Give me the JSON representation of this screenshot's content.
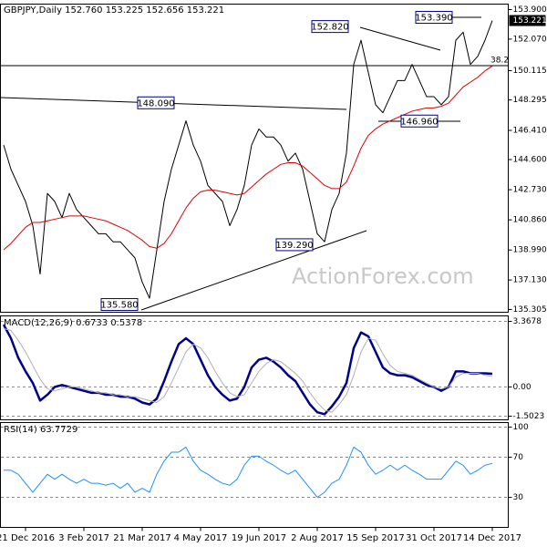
{
  "watermark": "ActionForex.com",
  "chart_data": [
    {
      "type": "line",
      "title": "GBPJPY,Daily  152.760 153.225 152.656 153.221",
      "grid": false,
      "ylim": [
        135.13,
        154.24
      ],
      "yticks": [
        {
          "value": 153.9,
          "label": "153.900"
        },
        {
          "value": 152.07,
          "label": "152.070"
        },
        150.115,
        148.295,
        {
          "value": 146.41,
          "label": "146.410"
        },
        {
          "value": 144.6,
          "label": "144.600"
        },
        {
          "value": 142.73,
          "label": "142.730"
        },
        {
          "value": 140.86,
          "label": "140.860"
        },
        {
          "value": 138.99,
          "label": "138.990"
        },
        {
          "value": 137.13,
          "label": "137.130"
        },
        135.305
      ],
      "last_price": 153.221,
      "annotations": [
        {
          "value": 152.82,
          "label": "152.820"
        },
        {
          "value": 153.39,
          "label": "153.390"
        },
        {
          "value": 148.09,
          "label": "148.090"
        },
        {
          "value": 146.96,
          "label": "146.960"
        },
        {
          "value": 139.29,
          "label": "139.290"
        },
        {
          "value": 135.58,
          "label": "135.580"
        }
      ],
      "fib_label": "38.2",
      "series": [
        {
          "color": "#000000",
          "values": [
            145.5,
            144.0,
            143.0,
            142.0,
            140.5,
            137.5,
            142.5,
            142.0,
            141.0,
            142.5,
            141.5,
            141.0,
            140.5,
            140.0,
            140.0,
            139.5,
            139.5,
            139.0,
            138.5,
            137.0,
            136.0,
            139.0,
            142.0,
            144.0,
            145.5,
            147.0,
            145.5,
            144.5,
            143.0,
            142.5,
            142.0,
            140.5,
            141.5,
            143.0,
            145.5,
            146.5,
            146.0,
            146.0,
            145.5,
            144.5,
            145.0,
            144.0,
            142.0,
            140.0,
            139.5,
            141.5,
            142.5,
            145.0,
            150.5,
            152.0,
            150.0,
            148.0,
            147.5,
            148.5,
            149.5,
            149.5,
            150.5,
            149.5,
            148.5,
            148.5,
            148.0,
            148.5,
            152.0,
            152.5,
            150.5,
            151.0,
            152.0,
            153.221
          ]
        },
        {
          "color": "#e00000",
          "values": [
            139.0,
            139.4,
            139.9,
            140.4,
            140.7,
            140.7,
            140.8,
            140.9,
            141.0,
            141.1,
            141.1,
            141.1,
            141.0,
            140.9,
            140.8,
            140.6,
            140.4,
            140.2,
            139.9,
            139.6,
            139.2,
            139.1,
            139.4,
            140.0,
            140.8,
            141.6,
            142.2,
            142.6,
            142.7,
            142.7,
            142.6,
            142.5,
            142.4,
            142.5,
            142.9,
            143.3,
            143.7,
            144.0,
            144.3,
            144.4,
            144.4,
            144.2,
            143.8,
            143.4,
            143.0,
            142.8,
            142.8,
            143.2,
            144.2,
            145.3,
            146.1,
            146.5,
            146.8,
            147.0,
            147.2,
            147.4,
            147.6,
            147.7,
            147.8,
            147.8,
            147.9,
            148.1,
            148.6,
            149.1,
            149.4,
            149.7,
            150.1,
            150.4
          ]
        }
      ]
    },
    {
      "type": "line",
      "title": "MACD(12,26,9) 0.6733 0.5378",
      "grid": true,
      "ylim": [
        -1.69,
        3.65
      ],
      "yticks": [
        3.3678,
        {
          "value": 0,
          "label": "0.00"
        },
        -1.5023
      ],
      "series": [
        {
          "color": "#00008b",
          "width": 2.5,
          "values": [
            3.2,
            2.5,
            1.5,
            0.8,
            0.2,
            -0.7,
            -0.4,
            0.0,
            0.1,
            0.0,
            -0.1,
            -0.2,
            -0.3,
            -0.3,
            -0.4,
            -0.4,
            -0.5,
            -0.5,
            -0.6,
            -0.8,
            -0.9,
            -0.6,
            0.3,
            1.3,
            2.2,
            2.5,
            2.2,
            1.4,
            0.6,
            0.0,
            -0.4,
            -0.7,
            -0.6,
            0.0,
            1.0,
            1.4,
            1.5,
            1.3,
            1.0,
            0.6,
            0.3,
            -0.3,
            -0.9,
            -1.3,
            -1.4,
            -1.0,
            -0.5,
            0.2,
            2.0,
            2.8,
            2.6,
            1.8,
            1.0,
            0.7,
            0.6,
            0.6,
            0.5,
            0.3,
            0.1,
            0.0,
            -0.2,
            0.0,
            0.8,
            0.8,
            0.7,
            0.7,
            0.7,
            0.6733
          ]
        },
        {
          "color": "#b0b0b0",
          "width": 1,
          "values": [
            3.0,
            2.9,
            2.4,
            1.8,
            1.1,
            0.4,
            -0.1,
            -0.2,
            -0.1,
            0.0,
            0.0,
            -0.1,
            -0.2,
            -0.3,
            -0.3,
            -0.4,
            -0.4,
            -0.5,
            -0.5,
            -0.6,
            -0.7,
            -0.8,
            -0.5,
            0.2,
            1.0,
            1.8,
            2.2,
            2.0,
            1.5,
            0.8,
            0.2,
            -0.3,
            -0.5,
            -0.4,
            0.2,
            0.8,
            1.2,
            1.4,
            1.3,
            1.0,
            0.7,
            0.3,
            -0.3,
            -0.8,
            -1.2,
            -1.3,
            -0.9,
            -0.4,
            0.6,
            1.8,
            2.5,
            2.4,
            1.7,
            1.1,
            0.8,
            0.7,
            0.6,
            0.4,
            0.2,
            0.0,
            -0.1,
            0.0,
            0.5,
            0.7,
            0.7,
            0.7,
            0.6,
            0.5378
          ]
        }
      ]
    },
    {
      "type": "line",
      "title": "RSI(14) 63.7729",
      "grid": true,
      "ylim": [
        0,
        104.5
      ],
      "yticks": [
        100,
        70,
        30
      ],
      "categories": [
        null,
        null,
        null,
        "21 Dec 2016",
        null,
        null,
        null,
        null,
        null,
        null,
        null,
        "3 Feb 2017",
        null,
        null,
        null,
        null,
        null,
        null,
        null,
        "21 Mar 2017",
        null,
        null,
        null,
        null,
        null,
        null,
        null,
        "4 May 2017",
        null,
        null,
        null,
        null,
        null,
        null,
        null,
        "19 Jun 2017",
        null,
        null,
        null,
        null,
        null,
        null,
        null,
        "2 Aug 2017",
        null,
        null,
        null,
        null,
        null,
        null,
        null,
        "15 Sep 2017",
        null,
        null,
        null,
        null,
        null,
        null,
        null,
        "31 Oct 2017",
        null,
        null,
        null,
        null,
        null,
        null,
        null,
        "14 Dec 2017"
      ],
      "series": [
        {
          "color": "#1e90ff",
          "width": 1,
          "values": [
            57,
            57,
            53,
            44,
            35,
            44,
            53,
            48,
            53,
            48,
            44,
            48,
            44,
            44,
            42,
            44,
            39,
            44,
            35,
            39,
            35,
            53,
            66,
            75,
            75,
            80,
            66,
            57,
            53,
            48,
            44,
            42,
            48,
            62,
            71,
            71,
            66,
            62,
            57,
            53,
            57,
            48,
            39,
            30,
            35,
            44,
            48,
            62,
            80,
            75,
            62,
            53,
            57,
            62,
            57,
            62,
            57,
            53,
            48,
            48,
            48,
            57,
            66,
            62,
            53,
            57,
            62,
            63.7729
          ]
        }
      ]
    }
  ]
}
